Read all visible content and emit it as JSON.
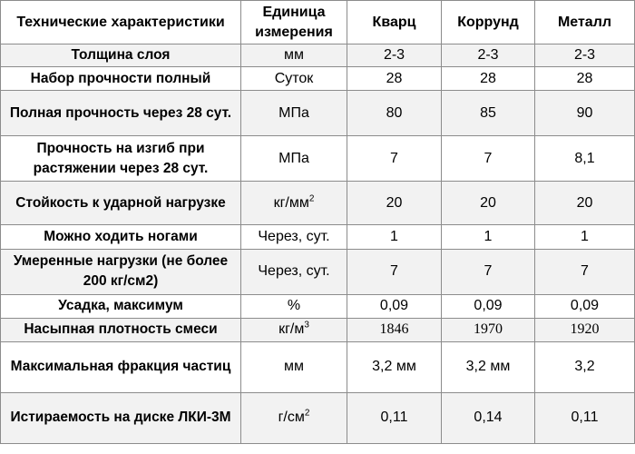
{
  "headers": [
    "Технические характеристики",
    "Единица измерения",
    "Кварц",
    "Коррунд",
    "Металл"
  ],
  "rows": [
    {
      "param": "Толщина слоя",
      "unit": "мм",
      "unit_sup": "",
      "quartz": "2-3",
      "corundum": "2-3",
      "metal": "2-3"
    },
    {
      "param": "Набор прочности полный",
      "unit": "Суток",
      "unit_sup": "",
      "quartz": "28",
      "corundum": "28",
      "metal": "28"
    },
    {
      "param": "Полная прочность через 28 сут.",
      "unit": "МПа",
      "unit_sup": "",
      "quartz": "80",
      "corundum": "85",
      "metal": "90"
    },
    {
      "param": "Прочность на изгиб при растяжении через 28 сут.",
      "unit": "МПа",
      "unit_sup": "",
      "quartz": "7",
      "corundum": "7",
      "metal": "8,1"
    },
    {
      "param": "Стойкость к ударной нагрузке",
      "unit": "кг/мм",
      "unit_sup": "2",
      "quartz": "20",
      "corundum": "20",
      "metal": "20"
    },
    {
      "param": "Можно ходить ногами",
      "unit": "Через, сут.",
      "unit_sup": "",
      "quartz": "1",
      "corundum": "1",
      "metal": "1"
    },
    {
      "param": "Умеренные нагрузки (не более 200 кг/см2)",
      "unit": "Через, сут.",
      "unit_sup": "",
      "quartz": "7",
      "corundum": "7",
      "metal": "7"
    },
    {
      "param": "Усадка, максимум",
      "unit": "%",
      "unit_sup": "",
      "quartz": "0,09",
      "corundum": "0,09",
      "metal": "0,09"
    },
    {
      "param": "Насыпная плотность смеси",
      "unit": "кг/м",
      "unit_sup": "3",
      "quartz": "1846",
      "corundum": "1970",
      "metal": "1920"
    },
    {
      "param": "Максимальная фракция частиц",
      "unit": "мм",
      "unit_sup": "",
      "quartz": "3,2 мм",
      "corundum": "3,2 мм",
      "metal": "3,2"
    },
    {
      "param": "Истираемость на диске ЛКИ-3М",
      "unit": "г/см",
      "unit_sup": "2",
      "quartz": "0,11",
      "corundum": "0,14",
      "metal": "0,11"
    }
  ]
}
